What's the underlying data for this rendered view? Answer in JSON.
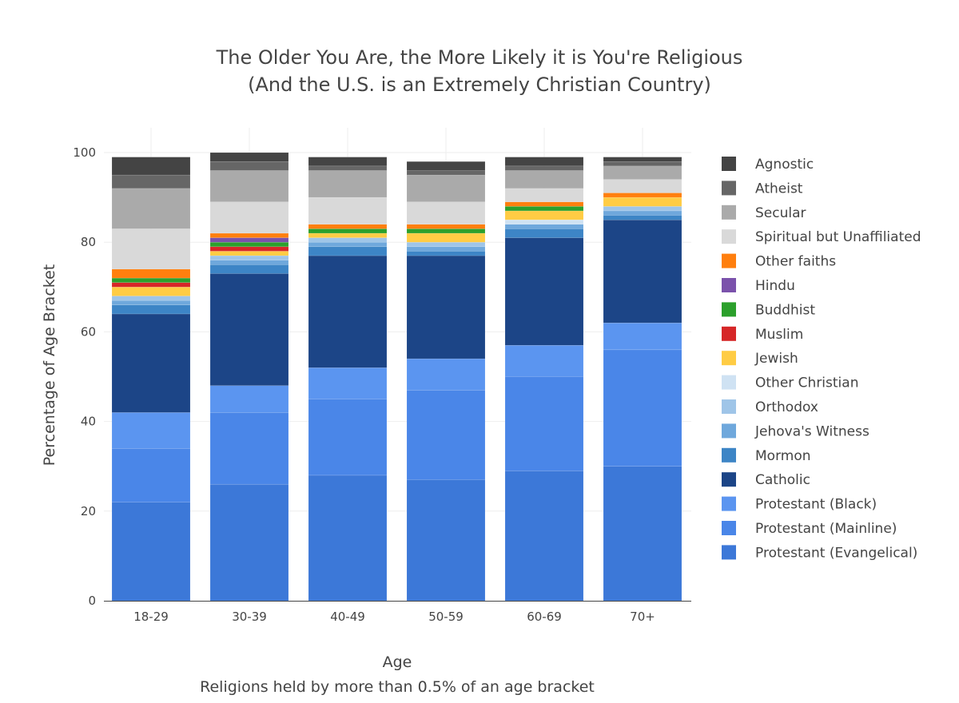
{
  "chart_data": {
    "type": "bar",
    "stacked": true,
    "title": "The Older You Are, the More Likely it is You're Religious",
    "subtitle": "(And the U.S. is an Extremely Christian Country)",
    "xlabel": "Age",
    "xlabel_sub": "Religions held by more than 0.5% of an age bracket",
    "ylabel": "Percentage of Age Bracket",
    "ylim": [
      0,
      100
    ],
    "yticks": [
      0,
      20,
      40,
      60,
      80,
      100
    ],
    "grid": true,
    "legend_position": "right",
    "categories": [
      "18-29",
      "30-39",
      "40-49",
      "50-59",
      "60-69",
      "70+"
    ],
    "series": [
      {
        "name": "Protestant (Evangelical)",
        "color": "#3c78d8",
        "values": [
          22,
          26,
          28,
          27,
          29,
          30
        ]
      },
      {
        "name": "Protestant (Mainline)",
        "color": "#4a86e8",
        "values": [
          12,
          16,
          17,
          20,
          21,
          26
        ]
      },
      {
        "name": "Protestant (Black)",
        "color": "#5b95f0",
        "values": [
          8,
          6,
          7,
          7,
          7,
          6
        ]
      },
      {
        "name": "Catholic",
        "color": "#1c4587",
        "values": [
          22,
          25,
          25,
          23,
          24,
          23
        ]
      },
      {
        "name": "Mormon",
        "color": "#3d85c6",
        "values": [
          2,
          2,
          2,
          1,
          2,
          1
        ]
      },
      {
        "name": "Jehova's Witness",
        "color": "#6fa8dc",
        "values": [
          1,
          1,
          1,
          1,
          1,
          1
        ]
      },
      {
        "name": "Orthodox",
        "color": "#9fc5e8",
        "values": [
          1,
          1,
          1,
          1,
          0,
          1
        ]
      },
      {
        "name": "Other Christian",
        "color": "#cfe2f3",
        "values": [
          0,
          0,
          0,
          0,
          1,
          0
        ]
      },
      {
        "name": "Jewish",
        "color": "#ffcc44",
        "values": [
          2,
          1,
          1,
          2,
          2,
          2
        ]
      },
      {
        "name": "Muslim",
        "color": "#d62728",
        "values": [
          1,
          1,
          0,
          0,
          0,
          0
        ]
      },
      {
        "name": "Buddhist",
        "color": "#2ca02c",
        "values": [
          1,
          1,
          1,
          1,
          1,
          0
        ]
      },
      {
        "name": "Hindu",
        "color": "#7b52ab",
        "values": [
          0,
          1,
          0,
          0,
          0,
          0
        ]
      },
      {
        "name": "Other faiths",
        "color": "#ff7f0e",
        "values": [
          2,
          1,
          1,
          1,
          1,
          1
        ]
      },
      {
        "name": "Spiritual but Unaffiliated",
        "color": "#d9d9d9",
        "values": [
          9,
          7,
          6,
          5,
          3,
          3
        ]
      },
      {
        "name": "Secular",
        "color": "#aaaaaa",
        "values": [
          9,
          7,
          6,
          6,
          4,
          3
        ]
      },
      {
        "name": "Atheist",
        "color": "#666666",
        "values": [
          3,
          2,
          1,
          1,
          1,
          1
        ]
      },
      {
        "name": "Agnostic",
        "color": "#444444",
        "values": [
          4,
          2,
          2,
          2,
          2,
          1
        ]
      }
    ]
  }
}
